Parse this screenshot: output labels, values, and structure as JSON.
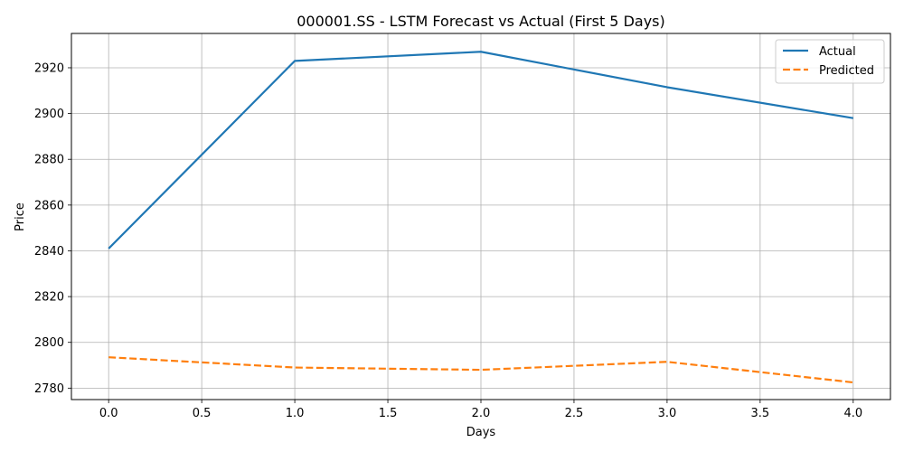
{
  "chart_data": {
    "type": "line",
    "title": "000001.SS - LSTM Forecast vs Actual (First 5 Days)",
    "xlabel": "Days",
    "ylabel": "Price",
    "x": [
      0,
      1,
      2,
      3,
      4
    ],
    "xlim": [
      -0.2,
      4.2
    ],
    "ylim": [
      2775,
      2935
    ],
    "xticks": [
      0.0,
      0.5,
      1.0,
      1.5,
      2.0,
      2.5,
      3.0,
      3.5,
      4.0
    ],
    "xtick_labels": [
      "0.0",
      "0.5",
      "1.0",
      "1.5",
      "2.0",
      "2.5",
      "3.0",
      "3.5",
      "4.0"
    ],
    "yticks": [
      2780,
      2800,
      2820,
      2840,
      2860,
      2880,
      2900,
      2920
    ],
    "ytick_labels": [
      "2780",
      "2800",
      "2820",
      "2840",
      "2860",
      "2880",
      "2900",
      "2920"
    ],
    "grid": true,
    "legend_position": "top-right",
    "series": [
      {
        "name": "Actual",
        "values": [
          2841,
          2923,
          2927,
          2911.5,
          2898
        ],
        "color": "#1f77b4",
        "style": "solid"
      },
      {
        "name": "Predicted",
        "values": [
          2793.5,
          2789,
          2788,
          2791.5,
          2782.5
        ],
        "color": "#ff7f0e",
        "style": "dashed"
      }
    ]
  }
}
